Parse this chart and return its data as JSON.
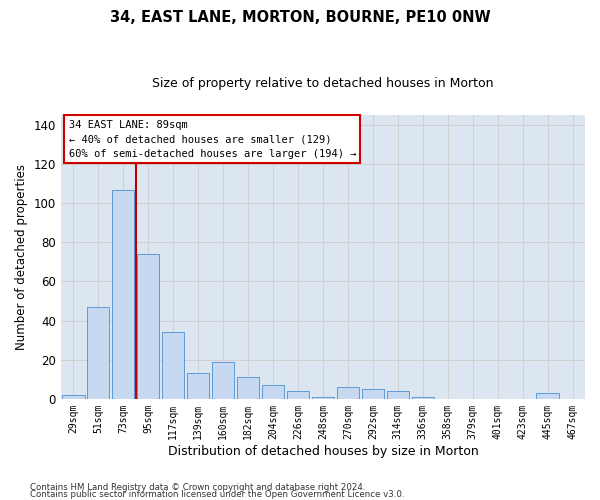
{
  "title": "34, EAST LANE, MORTON, BOURNE, PE10 0NW",
  "subtitle": "Size of property relative to detached houses in Morton",
  "xlabel": "Distribution of detached houses by size in Morton",
  "ylabel": "Number of detached properties",
  "categories": [
    "29sqm",
    "51sqm",
    "73sqm",
    "95sqm",
    "117sqm",
    "139sqm",
    "160sqm",
    "182sqm",
    "204sqm",
    "226sqm",
    "248sqm",
    "270sqm",
    "292sqm",
    "314sqm",
    "336sqm",
    "358sqm",
    "379sqm",
    "401sqm",
    "423sqm",
    "445sqm",
    "467sqm"
  ],
  "values": [
    2,
    47,
    107,
    74,
    34,
    13,
    19,
    11,
    7,
    4,
    1,
    6,
    5,
    4,
    1,
    0,
    0,
    0,
    0,
    3,
    0
  ],
  "bar_color": "#c6d9f0",
  "bar_edge_color": "#5b9bd5",
  "grid_color": "#d0d0d0",
  "bg_color": "#dce6f1",
  "annotation_box_text": "34 EAST LANE: 89sqm\n← 40% of detached houses are smaller (129)\n60% of semi-detached houses are larger (194) →",
  "vline_color": "#c00000",
  "vline_pos": 2.5,
  "ylim": [
    0,
    145
  ],
  "yticks": [
    0,
    20,
    40,
    60,
    80,
    100,
    120,
    140
  ],
  "title_fontsize": 10.5,
  "subtitle_fontsize": 9,
  "footer_line1": "Contains HM Land Registry data © Crown copyright and database right 2024.",
  "footer_line2": "Contains public sector information licensed under the Open Government Licence v3.0."
}
